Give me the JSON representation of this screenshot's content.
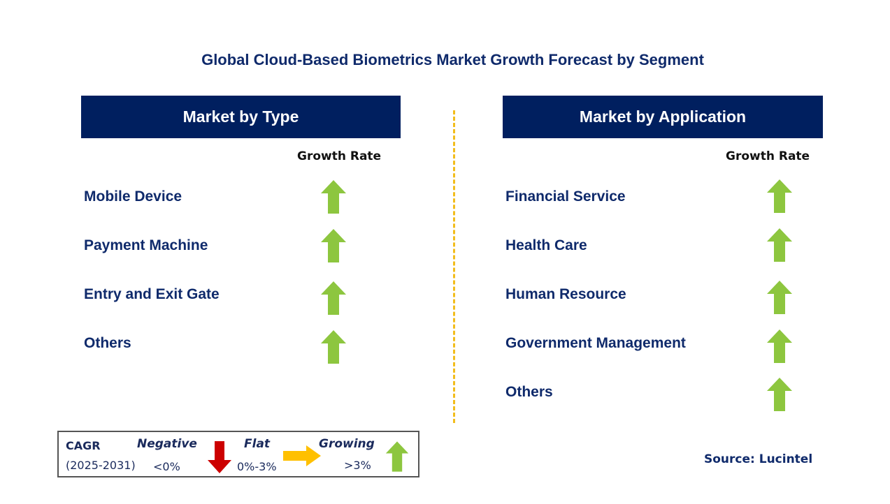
{
  "title": "Global Cloud-Based Biometrics Market Growth Forecast by Segment",
  "type_panel": {
    "header": "Market by Type",
    "growth_label": "Growth Rate",
    "rows": [
      "Mobile Device",
      "Payment Machine",
      "Entry and Exit Gate",
      "Others"
    ]
  },
  "application_panel": {
    "header": "Market by Application",
    "growth_label": "Growth Rate",
    "rows": [
      "Financial Service",
      "Health Care",
      "Human Resource",
      "Government Management",
      "Others"
    ]
  },
  "legend": {
    "cagr": "CAGR",
    "period": "(2025-2031)",
    "negative_label": "Negative",
    "negative_range": "<0%",
    "flat_label": "Flat",
    "flat_range": "0%-3%",
    "growing_label": "Growing",
    "growing_range": ">3%"
  },
  "source": "Source: Lucintel",
  "colors": {
    "header_bg": "#001f5f",
    "growing": "#8dc63f",
    "negative": "#cc0000",
    "flat": "#ffc000",
    "divider": "#f2bd1d"
  }
}
